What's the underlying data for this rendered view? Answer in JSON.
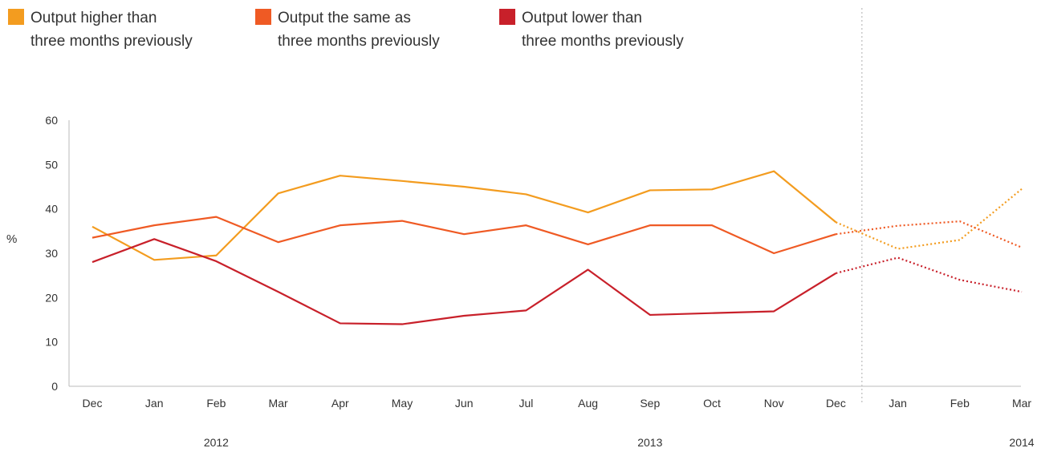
{
  "legend": [
    {
      "label": "Output higher than\nthree months previously",
      "color": "#f39c1f"
    },
    {
      "label": "Output the same as\nthree months previously",
      "color": "#ef5a24"
    },
    {
      "label": "Output lower than\nthree months previously",
      "color": "#c8202a"
    }
  ],
  "chart_data": {
    "type": "line",
    "title": "",
    "xlabel": "",
    "ylabel": "%",
    "ylim": [
      0,
      60
    ],
    "yticks": [
      0,
      10,
      20,
      30,
      40,
      50,
      60
    ],
    "categories": [
      "Dec",
      "Jan",
      "Feb",
      "Mar",
      "Apr",
      "May",
      "Jun",
      "Jul",
      "Aug",
      "Sep",
      "Oct",
      "Nov",
      "Dec",
      "Jan",
      "Feb",
      "Mar"
    ],
    "year_labels": [
      {
        "label": "2012",
        "category_index": 2
      },
      {
        "label": "2013",
        "category_index": 9
      },
      {
        "label": "2014",
        "category_index": 15
      }
    ],
    "forecast_start_index": 12,
    "grid": false,
    "legend_position": "top-left",
    "series": [
      {
        "name": "Output higher than three months previously",
        "color": "#f39c1f",
        "values": [
          36.0,
          28.5,
          29.5,
          43.5,
          47.5,
          46.3,
          45.0,
          43.3,
          39.2,
          44.2,
          44.4,
          48.5,
          37.0,
          31.0,
          33.0,
          44.5
        ]
      },
      {
        "name": "Output the same as three months previously",
        "color": "#ef5a24",
        "values": [
          33.5,
          36.3,
          38.2,
          32.5,
          36.3,
          37.3,
          34.3,
          36.3,
          32.0,
          36.3,
          36.3,
          30.0,
          34.3,
          36.2,
          37.2,
          31.3
        ]
      },
      {
        "name": "Output lower than three months previously",
        "color": "#c8202a",
        "values": [
          28.0,
          33.2,
          28.2,
          21.3,
          14.2,
          14.0,
          15.9,
          17.1,
          26.3,
          16.1,
          16.5,
          16.9,
          25.5,
          29.0,
          24.0,
          21.3
        ]
      }
    ]
  }
}
